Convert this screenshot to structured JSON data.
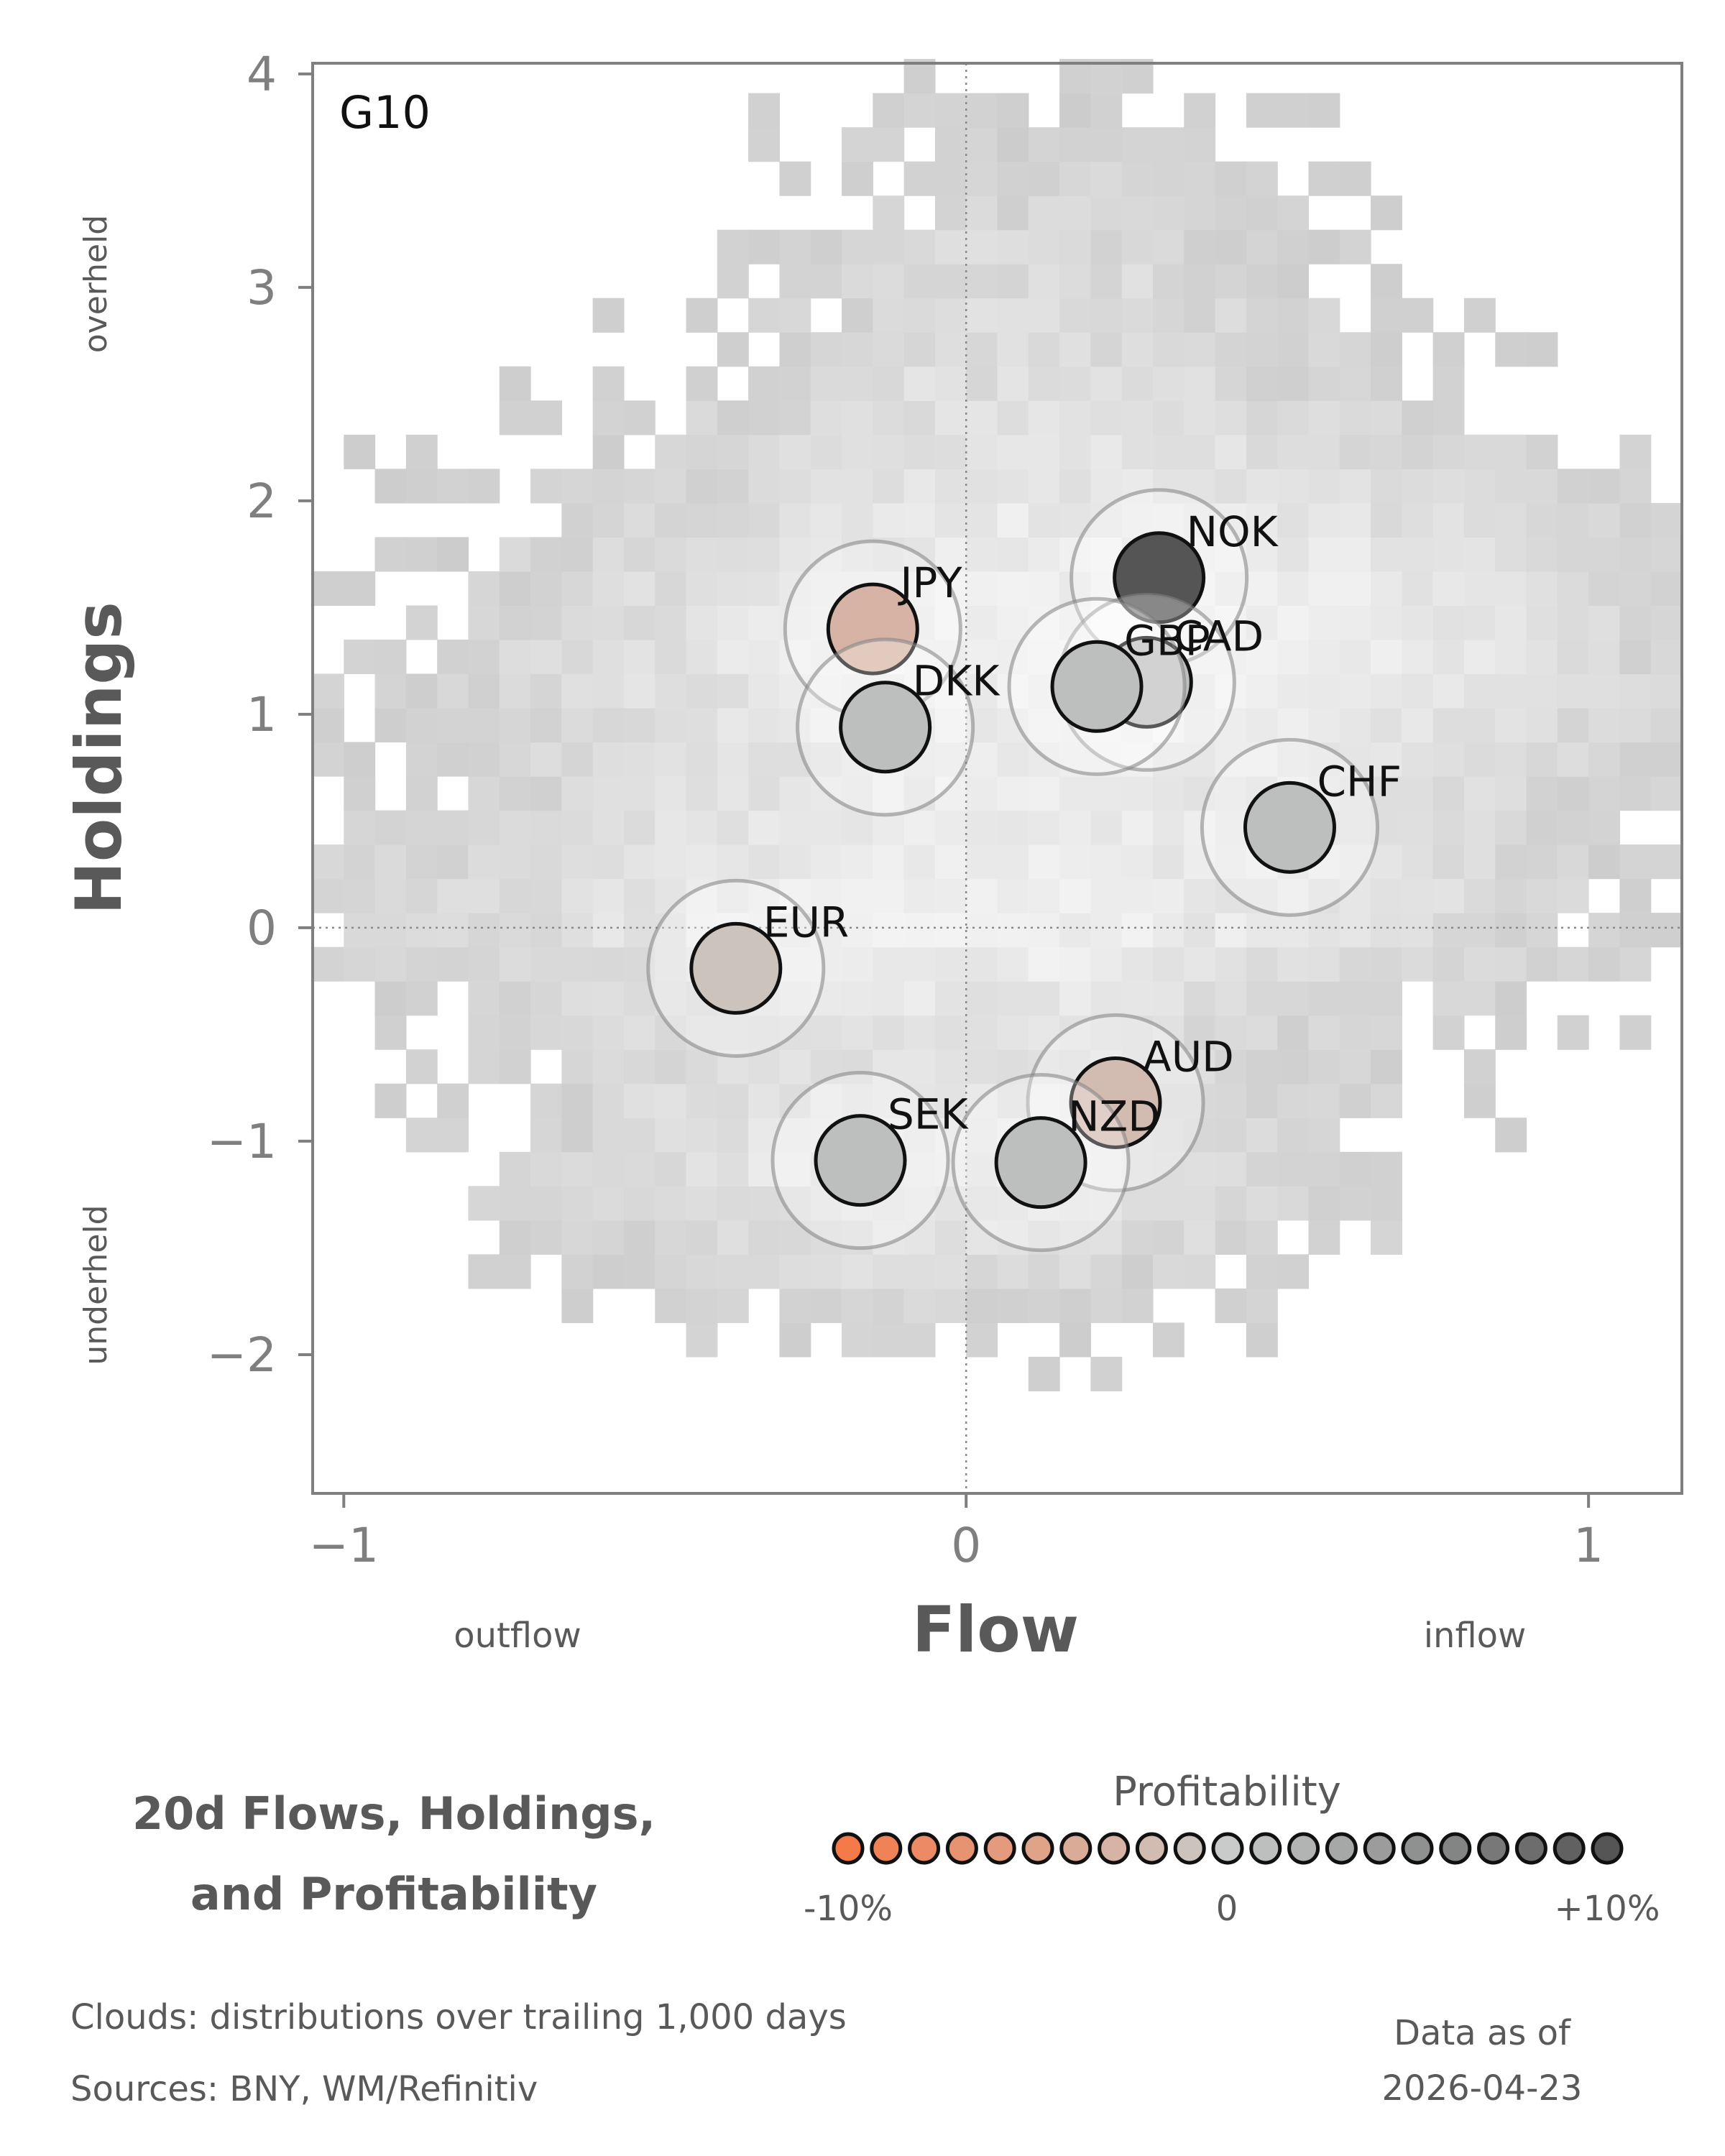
{
  "chart_data": {
    "type": "scatter",
    "panel_label": "G10",
    "xlabel": "Flow",
    "ylabel": "Holdings",
    "x_ticks": [
      "−1",
      "0",
      "1"
    ],
    "x_tick_values": [
      -1,
      0,
      1
    ],
    "y_ticks": [
      "−2",
      "−1",
      "0",
      "1",
      "2",
      "3",
      "4"
    ],
    "y_tick_values": [
      -2,
      -1,
      0,
      1,
      2,
      3,
      4
    ],
    "xlim": [
      -1.05,
      1.15
    ],
    "ylim": [
      -2.65,
      4.05
    ],
    "x_annotations": {
      "left": "outflow",
      "right": "inflow"
    },
    "y_annotations": {
      "top": "overheld",
      "bottom": "underheld"
    },
    "reference_lines": {
      "x": 0,
      "y": 0,
      "style": "dotted"
    },
    "cloud_cell_size": [
      0.05,
      0.16
    ],
    "points": [
      {
        "name": "NOK",
        "x": 0.31,
        "y": 1.64,
        "profitability": 10
      },
      {
        "name": "JPY",
        "x": -0.15,
        "y": 1.4,
        "profitability": -3
      },
      {
        "name": "CAD",
        "x": 0.29,
        "y": 1.15,
        "profitability": 1
      },
      {
        "name": "GBP",
        "x": 0.21,
        "y": 1.13,
        "profitability": 1
      },
      {
        "name": "DKK",
        "x": -0.13,
        "y": 0.94,
        "profitability": 1
      },
      {
        "name": "CHF",
        "x": 0.52,
        "y": 0.47,
        "profitability": 1
      },
      {
        "name": "EUR",
        "x": -0.37,
        "y": -0.19,
        "profitability": -1
      },
      {
        "name": "AUD",
        "x": 0.24,
        "y": -0.82,
        "profitability": -2
      },
      {
        "name": "SEK",
        "x": -0.17,
        "y": -1.09,
        "profitability": 1
      },
      {
        "name": "NZD",
        "x": 0.12,
        "y": -1.1,
        "profitability": 1
      }
    ],
    "legend": {
      "title": "Profitability",
      "min_label": "-10%",
      "mid_label": "0",
      "max_label": "+10%",
      "range": [
        -10,
        10
      ],
      "swatch_count": 21
    },
    "colors": {
      "negative": "#f47a4a",
      "neutral": "#c9cbca",
      "positive": "#555555",
      "cloud_base": "#cccccc",
      "cloud_light": "#f3f3f3",
      "axis": "#7f7f7f",
      "label": "#595959"
    }
  },
  "title_lines": [
    "20d Flows, Holdings,",
    "and Profitability"
  ],
  "footer": {
    "clouds": "Clouds:  distributions over trailing 1,000 days",
    "sources": "Sources:  BNY, WM/Refinitiv",
    "date_label": "Data as of",
    "date_value": "2026-04-23"
  }
}
